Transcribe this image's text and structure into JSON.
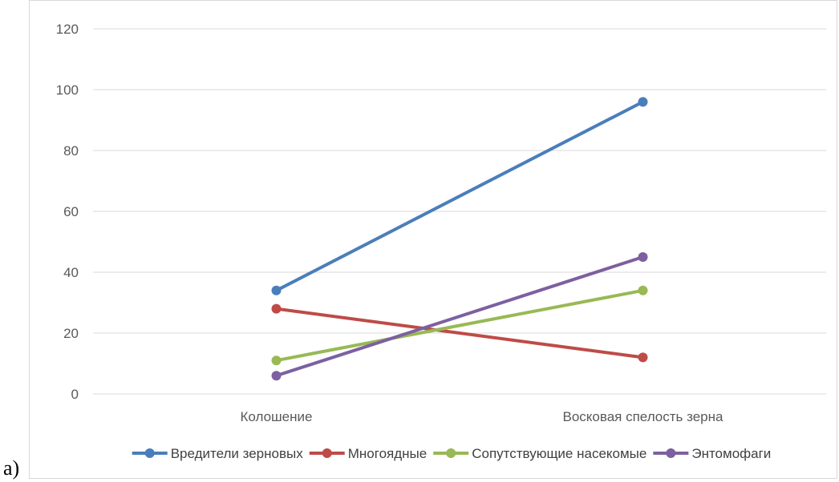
{
  "panel_label": "а)",
  "chart_data": {
    "type": "line",
    "categories": [
      "Колошение",
      "Восковая спелость зерна"
    ],
    "ylim": [
      0,
      120
    ],
    "yticks": [
      0,
      20,
      40,
      60,
      80,
      100,
      120
    ],
    "grid": true,
    "legend": "bottom",
    "series": [
      {
        "name": "Вредители зерновых",
        "values": [
          34,
          96
        ],
        "color": "#4a7ebb"
      },
      {
        "name": "Многоядные",
        "values": [
          28,
          12
        ],
        "color": "#be4b48"
      },
      {
        "name": "Сопутствующие насекомые",
        "values": [
          11,
          34
        ],
        "color": "#98b954"
      },
      {
        "name": "Энтомофаги",
        "values": [
          6,
          45
        ],
        "color": "#7d60a0"
      }
    ]
  }
}
